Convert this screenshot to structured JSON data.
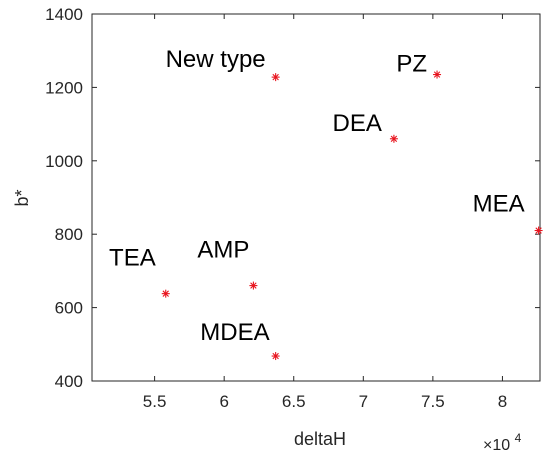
{
  "chart_data": {
    "type": "scatter",
    "xlabel": "deltaH",
    "ylabel": "b*",
    "x_exponent_label": {
      "base": "×10",
      "exp": "4"
    },
    "xlim": [
      5.05,
      8.27
    ],
    "ylim": [
      400,
      1400
    ],
    "x_ticks": [
      5.5,
      6,
      6.5,
      7,
      7.5,
      8
    ],
    "x_tick_labels": [
      "5.5",
      "6",
      "6.5",
      "7",
      "7.5",
      "8"
    ],
    "y_ticks": [
      400,
      600,
      800,
      1000,
      1200,
      1400
    ],
    "y_tick_labels": [
      "400",
      "600",
      "800",
      "1000",
      "1200",
      "1400"
    ],
    "grid": false,
    "marker": "*",
    "marker_color": "#e8141e",
    "points": [
      {
        "label": "New type",
        "x": 6.37,
        "y": 1228
      },
      {
        "label": "PZ",
        "x": 7.53,
        "y": 1235
      },
      {
        "label": "DEA",
        "x": 7.22,
        "y": 1060
      },
      {
        "label": "MEA",
        "x": 8.26,
        "y": 810
      },
      {
        "label": "TEA",
        "x": 5.58,
        "y": 638
      },
      {
        "label": "AMP",
        "x": 6.21,
        "y": 660
      },
      {
        "label": "MDEA",
        "x": 6.37,
        "y": 468
      }
    ]
  }
}
